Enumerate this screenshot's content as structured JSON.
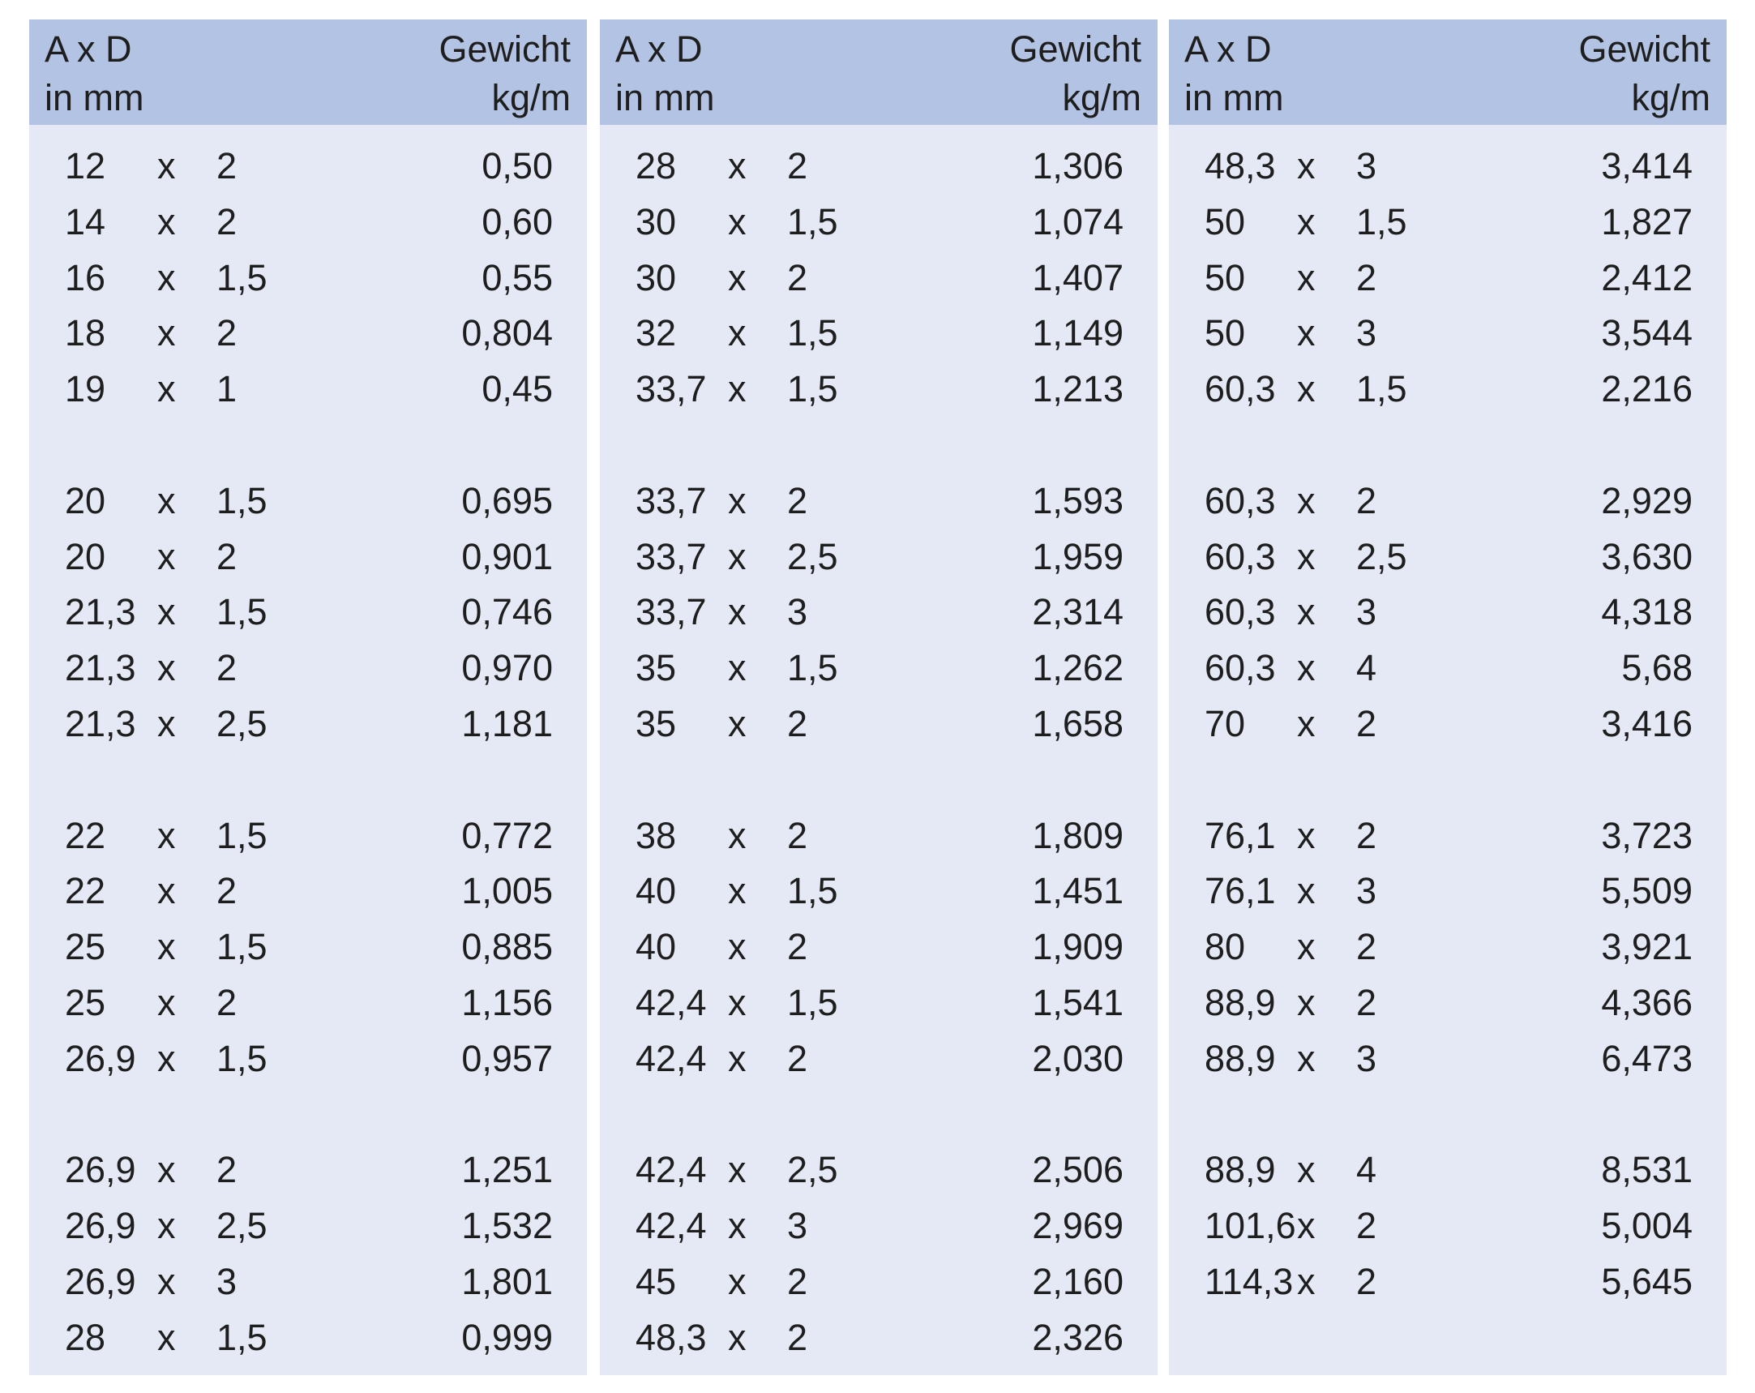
{
  "panels": [
    {
      "header": {
        "col1_line1": "A x D",
        "col1_line2": "in mm",
        "col2_line1": "Gewicht",
        "col2_line2": "kg/m"
      },
      "rows": [
        [
          "12",
          "x",
          "2",
          "0,50"
        ],
        [
          "14",
          "x",
          "2",
          "0,60"
        ],
        [
          "16",
          "x",
          "1,5",
          "0,55"
        ],
        [
          "18",
          "x",
          "2",
          "0,804"
        ],
        [
          "19",
          "x",
          "1",
          "0,45"
        ],
        [
          "20",
          "x",
          "1,5",
          "0,695"
        ],
        [
          "20",
          "x",
          "2",
          "0,901"
        ],
        [
          "21,3",
          "x",
          "1,5",
          "0,746"
        ],
        [
          "21,3",
          "x",
          "2",
          "0,970"
        ],
        [
          "21,3",
          "x",
          "2,5",
          "1,181"
        ],
        [
          "22",
          "x",
          "1,5",
          "0,772"
        ],
        [
          "22",
          "x",
          "2",
          "1,005"
        ],
        [
          "25",
          "x",
          "1,5",
          "0,885"
        ],
        [
          "25",
          "x",
          "2",
          "1,156"
        ],
        [
          "26,9",
          "x",
          "1,5",
          "0,957"
        ],
        [
          "26,9",
          "x",
          "2",
          "1,251"
        ],
        [
          "26,9",
          "x",
          "2,5",
          "1,532"
        ],
        [
          "26,9",
          "x",
          "3",
          "1,801"
        ],
        [
          "28",
          "x",
          "1,5",
          "0,999"
        ]
      ]
    },
    {
      "header": {
        "col1_line1": "A x D",
        "col1_line2": "in mm",
        "col2_line1": "Gewicht",
        "col2_line2": "kg/m"
      },
      "rows": [
        [
          "28",
          "x",
          "2",
          "1,306"
        ],
        [
          "30",
          "x",
          "1,5",
          "1,074"
        ],
        [
          "30",
          "x",
          "2",
          "1,407"
        ],
        [
          "32",
          "x",
          "1,5",
          "1,149"
        ],
        [
          "33,7",
          "x",
          "1,5",
          "1,213"
        ],
        [
          "33,7",
          "x",
          "2",
          "1,593"
        ],
        [
          "33,7",
          "x",
          "2,5",
          "1,959"
        ],
        [
          "33,7",
          "x",
          "3",
          "2,314"
        ],
        [
          "35",
          "x",
          "1,5",
          "1,262"
        ],
        [
          "35",
          "x",
          "2",
          "1,658"
        ],
        [
          "38",
          "x",
          "2",
          "1,809"
        ],
        [
          "40",
          "x",
          "1,5",
          "1,451"
        ],
        [
          "40",
          "x",
          "2",
          "1,909"
        ],
        [
          "42,4",
          "x",
          "1,5",
          "1,541"
        ],
        [
          "42,4",
          "x",
          "2",
          "2,030"
        ],
        [
          "42,4",
          "x",
          "2,5",
          "2,506"
        ],
        [
          "42,4",
          "x",
          "3",
          "2,969"
        ],
        [
          "45",
          "x",
          "2",
          "2,160"
        ],
        [
          "48,3",
          "x",
          "2",
          "2,326"
        ]
      ]
    },
    {
      "header": {
        "col1_line1": "A x D",
        "col1_line2": "in mm",
        "col2_line1": "Gewicht",
        "col2_line2": "kg/m"
      },
      "rows": [
        [
          "48,3",
          "x",
          "3",
          "3,414"
        ],
        [
          "50",
          "x",
          "1,5",
          "1,827"
        ],
        [
          "50",
          "x",
          "2",
          "2,412"
        ],
        [
          "50",
          "x",
          "3",
          "3,544"
        ],
        [
          "60,3",
          "x",
          "1,5",
          "2,216"
        ],
        [
          "60,3",
          "x",
          "2",
          "2,929"
        ],
        [
          "60,3",
          "x",
          "2,5",
          "3,630"
        ],
        [
          "60,3",
          "x",
          "3",
          "4,318"
        ],
        [
          "60,3",
          "x",
          "4",
          "5,68"
        ],
        [
          "70",
          "x",
          "2",
          "3,416"
        ],
        [
          "76,1",
          "x",
          "2",
          "3,723"
        ],
        [
          "76,1",
          "x",
          "3",
          "5,509"
        ],
        [
          "80",
          "x",
          "2",
          "3,921"
        ],
        [
          "88,9",
          "x",
          "2",
          "4,366"
        ],
        [
          "88,9",
          "x",
          "3",
          "6,473"
        ],
        [
          "88,9",
          "x",
          "4",
          "8,531"
        ],
        [
          "101,6",
          "x",
          "2",
          "5,004"
        ],
        [
          "114,3",
          "x",
          "2",
          "5,645"
        ]
      ]
    }
  ]
}
